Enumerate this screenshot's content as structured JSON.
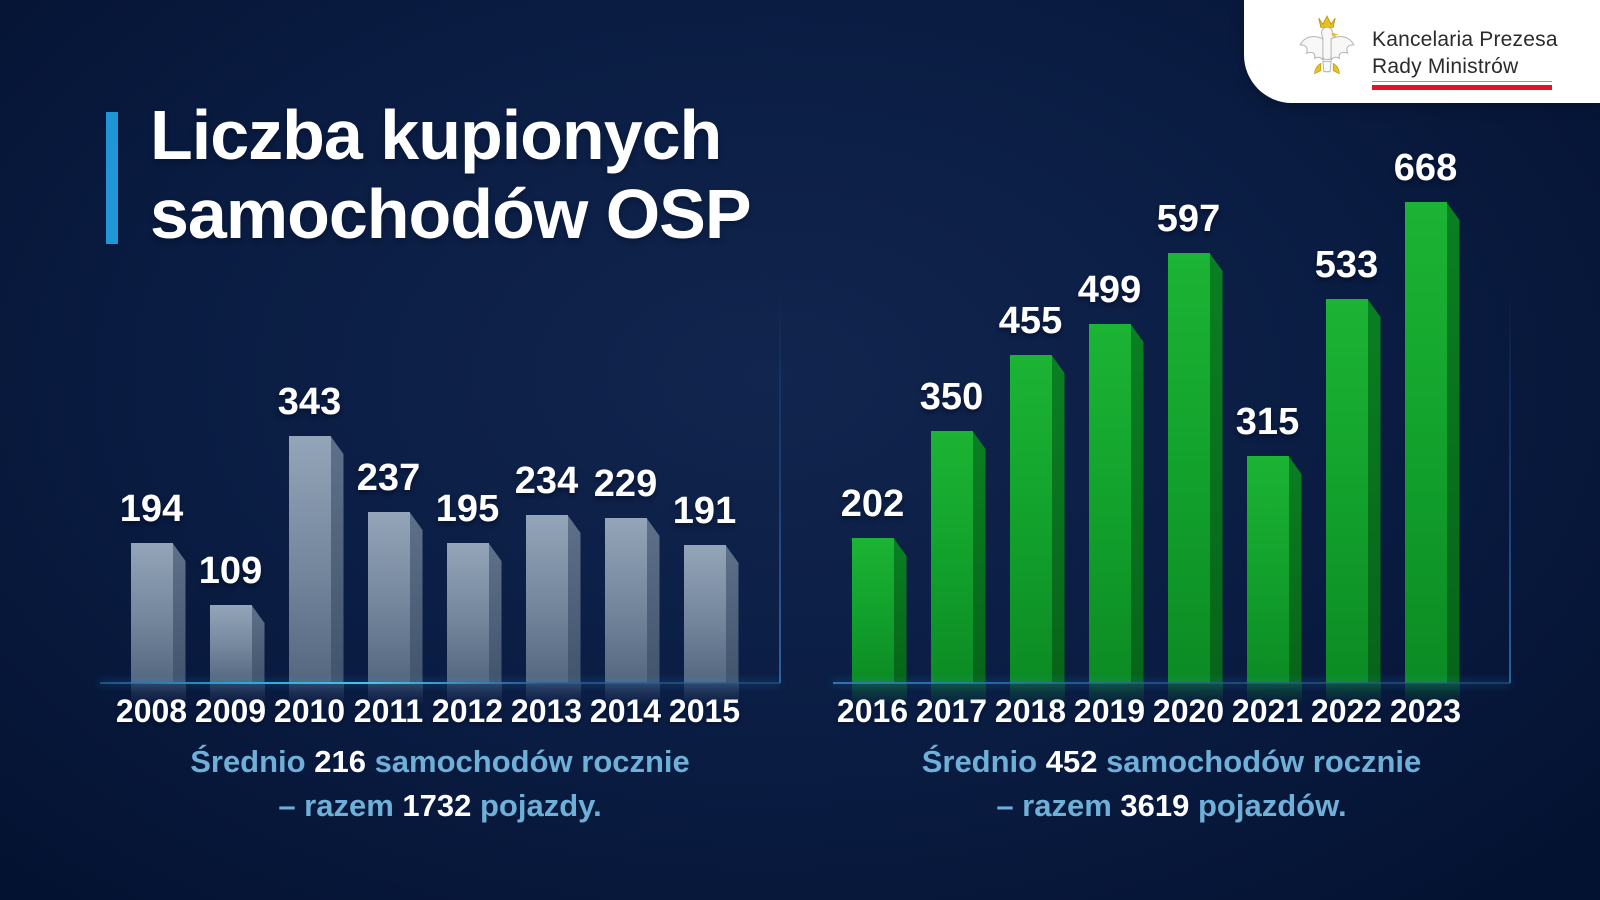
{
  "page": {
    "title_line1": "Liczba kupionych",
    "title_line2": "samochodów OSP"
  },
  "logo": {
    "line1": "Kancelaria Prezesa",
    "line2": "Rady Ministrów",
    "red_bar_color": "#e8112d",
    "eagle_icon": "polish-eagle-emblem"
  },
  "colors": {
    "background_navy": "#0a1c42",
    "accent_cyan": "#2196d6",
    "baseline_glow": "#48c4ee",
    "gray_bar": "#7d8fa6",
    "green_bar": "#12a22c",
    "caption_blue": "#6fb0d8",
    "text_white": "#ffffff"
  },
  "chart_data": [
    {
      "type": "bar",
      "name": "osp-cars-2008-2015",
      "categories": [
        "2008",
        "2009",
        "2010",
        "2011",
        "2012",
        "2013",
        "2014",
        "2015"
      ],
      "values": [
        194,
        109,
        343,
        237,
        195,
        234,
        229,
        191
      ],
      "bar_color": "#7d8fa6",
      "bar_side_color": "#4d5f78",
      "data_labels": true,
      "ylim": [
        0,
        700
      ],
      "caption": {
        "prefix": "Średnio ",
        "avg": "216",
        "middle": " samochodów rocznie",
        "line2_prefix": "– razem ",
        "total": "1732",
        "suffix": " pojazdy."
      }
    },
    {
      "type": "bar",
      "name": "osp-cars-2016-2023",
      "categories": [
        "2016",
        "2017",
        "2018",
        "2019",
        "2020",
        "2021",
        "2022",
        "2023"
      ],
      "values": [
        202,
        350,
        455,
        499,
        597,
        315,
        533,
        668
      ],
      "bar_color": "#12a22c",
      "bar_side_color": "#087a20",
      "data_labels": true,
      "ylim": [
        0,
        700
      ],
      "caption": {
        "prefix": "Średnio ",
        "avg": "452",
        "middle": " samochodów rocznie",
        "line2_prefix": "– razem ",
        "total": "3619",
        "suffix": " pojazdów."
      }
    }
  ]
}
